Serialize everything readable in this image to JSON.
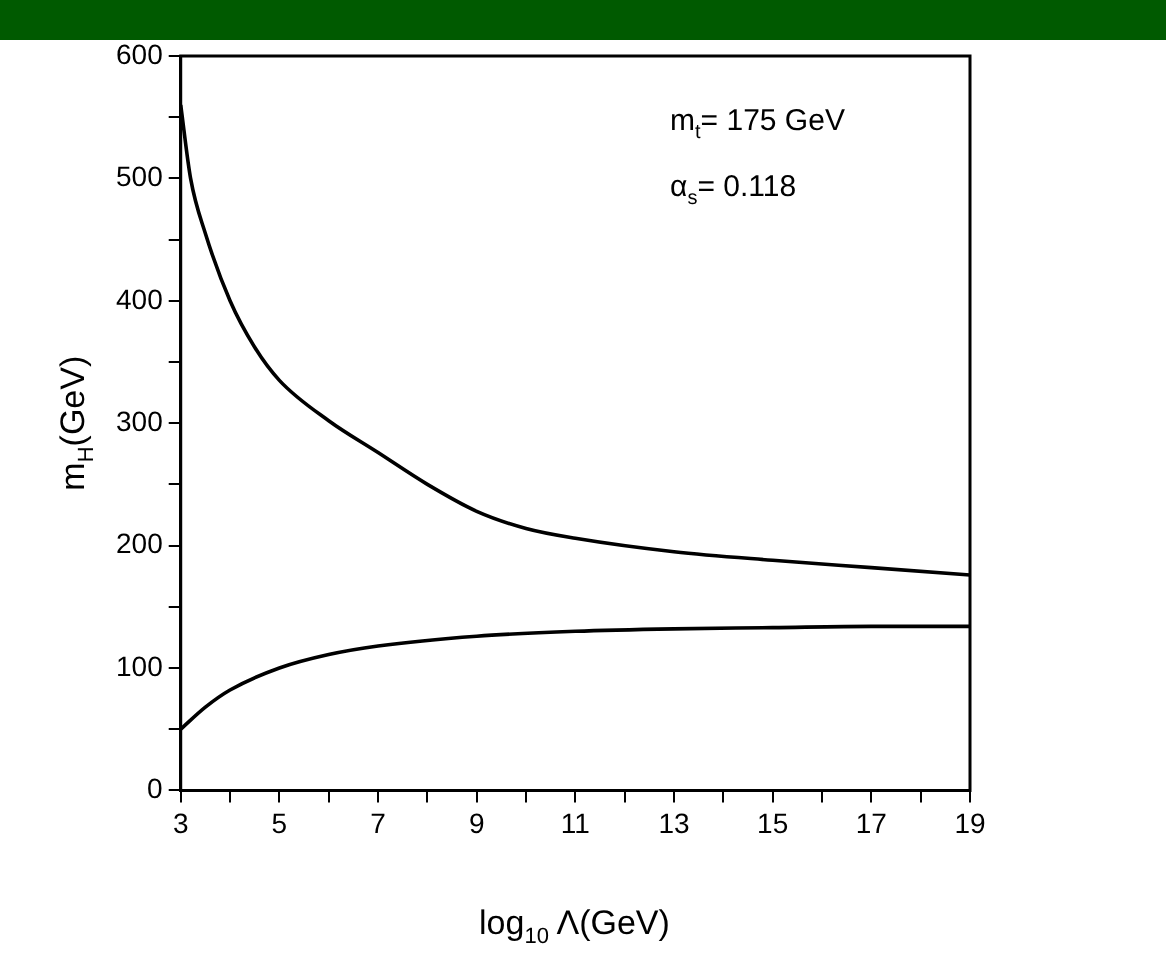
{
  "chart_data": {
    "type": "line",
    "xlabel": "log$_{10}$ Λ(GeV)",
    "ylabel": "m$_{H}$(GeV)",
    "annotations": [
      "m$_{t}$= 175 GeV",
      "α$_{s}$= 0.118"
    ],
    "series": [
      {
        "color": "#000000",
        "x": [
          3,
          3.2,
          3.5,
          4,
          4.5,
          5,
          6,
          7,
          8,
          9,
          10,
          11,
          13,
          15,
          17,
          19
        ],
        "values": [
          560,
          500,
          455,
          400,
          362,
          335,
          302,
          276,
          250,
          228,
          214,
          206,
          195,
          188,
          182,
          176
        ]
      },
      {
        "color": "#000000",
        "x": [
          3,
          3.5,
          4,
          5,
          6,
          7,
          9,
          11,
          13,
          15,
          17,
          19
        ],
        "values": [
          50,
          68,
          82,
          100,
          111,
          118,
          126,
          130,
          132,
          133,
          134,
          134
        ]
      }
    ],
    "xlim": [
      3,
      19
    ],
    "xticks": [
      3,
      {
        "value": 4,
        "label": null
      },
      5,
      {
        "value": 6,
        "label": null
      },
      7,
      {
        "value": 8,
        "label": null
      },
      9,
      {
        "value": 10,
        "label": null
      },
      11,
      {
        "value": 12,
        "label": null
      },
      13,
      {
        "value": 14,
        "label": null
      },
      15,
      {
        "value": 16,
        "label": null
      },
      17,
      {
        "value": 18,
        "label": null
      },
      19
    ],
    "ylim": [
      0,
      600
    ],
    "yticks": [
      0,
      {
        "value": 50,
        "label": null
      },
      100,
      {
        "value": 150,
        "label": null
      },
      200,
      {
        "value": 250,
        "label": null
      },
      300,
      {
        "value": 350,
        "label": null
      },
      400,
      {
        "value": 450,
        "label": null
      },
      500,
      {
        "value": 550,
        "label": null
      },
      600
    ],
    "grid": false,
    "legend": false,
    "marker": "none",
    "line_style": "solid"
  }
}
